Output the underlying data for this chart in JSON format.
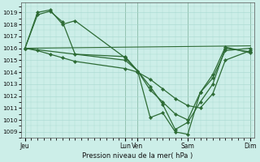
{
  "xlabel": "Pression niveau de la mer( hPa )",
  "bg_color": "#cceee8",
  "line_color": "#2d6b35",
  "grid_color": "#a8d8d0",
  "vline_color": "#4a7a50",
  "ylim": [
    1008.5,
    1019.8
  ],
  "yticks": [
    1009,
    1010,
    1011,
    1012,
    1013,
    1014,
    1015,
    1016,
    1017,
    1018,
    1019
  ],
  "xtick_labels": [
    "Jeu",
    "Lun",
    "Ven",
    "Sam",
    "Dim"
  ],
  "xtick_positions": [
    0,
    8,
    9,
    13,
    18
  ],
  "xlim": [
    -0.3,
    18.3
  ],
  "series": [
    {
      "x": [
        0,
        1,
        2,
        3,
        4,
        8,
        9,
        10,
        11,
        12,
        13,
        14,
        15,
        16,
        18
      ],
      "y": [
        1016.0,
        1019.0,
        1019.2,
        1018.0,
        1018.3,
        1015.2,
        1014.1,
        1012.5,
        1011.5,
        1010.5,
        1010.0,
        1012.3,
        1013.5,
        1015.8,
        1016.0
      ]
    },
    {
      "x": [
        0,
        1,
        2,
        3,
        4,
        8,
        9,
        10,
        11,
        12,
        13,
        14,
        15,
        16,
        18
      ],
      "y": [
        1016.0,
        1018.8,
        1019.1,
        1018.2,
        1015.5,
        1015.3,
        1014.1,
        1012.8,
        1011.3,
        1009.2,
        1009.8,
        1011.5,
        1013.0,
        1016.0,
        1015.7
      ]
    },
    {
      "x": [
        0,
        1,
        2,
        3,
        4,
        8,
        9,
        10,
        11,
        12,
        13,
        14,
        15,
        16,
        18
      ],
      "y": [
        1016.0,
        1015.8,
        1015.5,
        1015.2,
        1014.9,
        1014.3,
        1014.0,
        1013.4,
        1012.6,
        1011.8,
        1011.2,
        1011.0,
        1012.2,
        1015.0,
        1015.8
      ]
    },
    {
      "x": [
        0,
        18
      ],
      "y": [
        1016.0,
        1016.2
      ],
      "no_markers": true
    },
    {
      "x": [
        0,
        8,
        9,
        10,
        11,
        12,
        13,
        14,
        15,
        16,
        18
      ],
      "y": [
        1016.0,
        1015.0,
        1014.1,
        1010.2,
        1010.6,
        1009.0,
        1008.8,
        1012.3,
        1013.8,
        1016.1,
        1015.6
      ]
    }
  ]
}
